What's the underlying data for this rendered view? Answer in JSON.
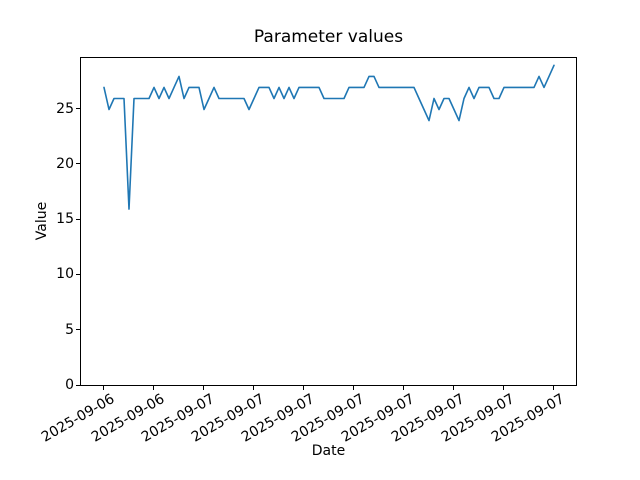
{
  "figure": {
    "background": "#ffffff",
    "spine_color": "#000000",
    "text_color": "#000000"
  },
  "chart_data": {
    "type": "line",
    "title": "Parameter values",
    "xlabel": "Date",
    "ylabel": "Value",
    "grid": false,
    "legend_position": "none",
    "line_color": "#1f77b4",
    "ylim": [
      0,
      29.66
    ],
    "y_ticks": [
      0,
      5,
      10,
      15,
      20,
      25
    ],
    "x_tick_labels": [
      "2025-09-06",
      "2025-09-06",
      "2025-09-07",
      "2025-09-07",
      "2025-09-07",
      "2025-09-07",
      "2025-09-07",
      "2025-09-07",
      "2025-09-07",
      "2025-09-07"
    ],
    "x_tick_indices": [
      0,
      10,
      20,
      30,
      40,
      50,
      60,
      70,
      80,
      90
    ],
    "values": [
      27,
      25,
      26,
      26,
      26,
      16,
      26,
      26,
      26,
      26,
      27,
      26,
      27,
      26,
      27,
      28,
      26,
      27,
      27,
      27,
      25,
      26,
      27,
      26,
      26,
      26,
      26,
      26,
      26,
      25,
      26,
      27,
      27,
      27,
      26,
      27,
      26,
      27,
      26,
      27,
      27,
      27,
      27,
      27,
      26,
      26,
      26,
      26,
      26,
      27,
      27,
      27,
      27,
      28,
      28,
      27,
      27,
      27,
      27,
      27,
      27,
      27,
      27,
      26,
      25,
      24,
      26,
      25,
      26,
      26,
      25,
      24,
      26,
      27,
      26,
      27,
      27,
      27,
      26,
      26,
      27,
      27,
      27,
      27,
      27,
      27,
      27,
      28,
      27,
      28,
      29
    ]
  }
}
